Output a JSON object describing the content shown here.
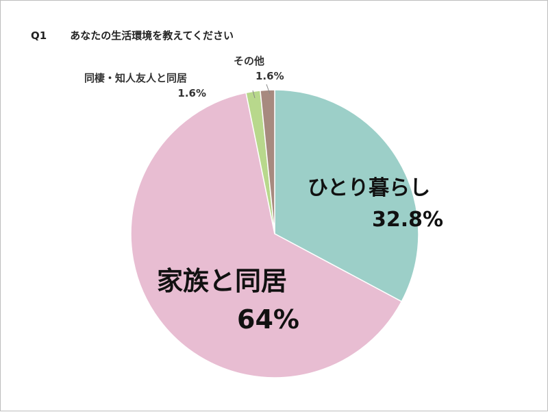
{
  "question": {
    "number": "Q1",
    "text": "あなたの生活環境を教えてください"
  },
  "chart_data": {
    "type": "pie",
    "title": "あなたの生活環境を教えてください",
    "start": "12 o'clock, clockwise",
    "slices": [
      {
        "label": "ひとり暮らし",
        "value": 32.8,
        "display": "32.8%",
        "color": "#9ccfc8"
      },
      {
        "label": "家族と同居",
        "value": 64,
        "display": "64%",
        "color": "#e8bdd2"
      },
      {
        "label": "同棲・知人友人と同居",
        "value": 1.6,
        "display": "1.6%",
        "color": "#b8d88c"
      },
      {
        "label": "その他",
        "value": 1.6,
        "display": "1.6%",
        "color": "#a78a7f"
      }
    ]
  }
}
